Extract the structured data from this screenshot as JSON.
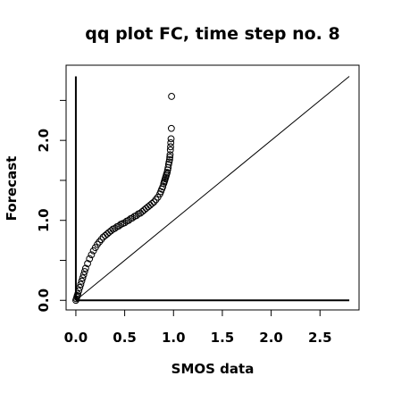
{
  "chart_data": {
    "type": "scatter",
    "title": "qq plot FC, time step no. 8",
    "xlabel": "SMOS data",
    "ylabel": "Forecast",
    "xlim": [
      -0.1,
      2.9
    ],
    "ylim": [
      -0.12,
      2.94
    ],
    "x_ticks": [
      0.0,
      0.5,
      1.0,
      1.5,
      2.0,
      2.5
    ],
    "x_tick_labels": [
      "0.0",
      "0.5",
      "1.0",
      "1.5",
      "2.0",
      "2.5"
    ],
    "y_ticks": [
      0.0,
      0.5,
      1.0,
      1.5,
      2.0,
      2.5
    ],
    "y_tick_labels": [
      "0.0",
      "",
      "1.0",
      "",
      "2.0",
      ""
    ],
    "grid": false,
    "reference_line": {
      "from": [
        0,
        0
      ],
      "to": [
        2.8,
        2.8
      ]
    },
    "reference_axes": {
      "vertical_x": 0.0,
      "vertical_to_y": 2.8,
      "horizontal_y": 0.0,
      "horizontal_to_x": 2.8
    },
    "quantiles": {
      "x": [
        0.0,
        0.005,
        0.01,
        0.015,
        0.02,
        0.03,
        0.04,
        0.05,
        0.06,
        0.07,
        0.08,
        0.09,
        0.1,
        0.12,
        0.14,
        0.16,
        0.18,
        0.2,
        0.22,
        0.24,
        0.26,
        0.28,
        0.3,
        0.32,
        0.34,
        0.36,
        0.38,
        0.4,
        0.42,
        0.44,
        0.46,
        0.48,
        0.5,
        0.52,
        0.54,
        0.56,
        0.58,
        0.6,
        0.62,
        0.64,
        0.66,
        0.68,
        0.7,
        0.72,
        0.74,
        0.76,
        0.78,
        0.8,
        0.82,
        0.84,
        0.86,
        0.87,
        0.88,
        0.89,
        0.9,
        0.905,
        0.91,
        0.915,
        0.92,
        0.925,
        0.93,
        0.935,
        0.94,
        0.945,
        0.95,
        0.955,
        0.96,
        0.962,
        0.965,
        0.968,
        0.97,
        0.972,
        0.975,
        0.978,
        0.98
      ],
      "y": [
        0.0,
        0.02,
        0.04,
        0.06,
        0.08,
        0.12,
        0.16,
        0.2,
        0.24,
        0.28,
        0.32,
        0.36,
        0.4,
        0.46,
        0.52,
        0.57,
        0.62,
        0.66,
        0.7,
        0.73,
        0.76,
        0.79,
        0.81,
        0.83,
        0.85,
        0.87,
        0.89,
        0.9,
        0.92,
        0.93,
        0.95,
        0.96,
        0.97,
        0.99,
        1.0,
        1.02,
        1.03,
        1.05,
        1.06,
        1.08,
        1.09,
        1.11,
        1.13,
        1.15,
        1.17,
        1.19,
        1.21,
        1.23,
        1.26,
        1.29,
        1.33,
        1.36,
        1.39,
        1.42,
        1.46,
        1.48,
        1.5,
        1.52,
        1.54,
        1.56,
        1.58,
        1.6,
        1.63,
        1.66,
        1.7,
        1.73,
        1.76,
        1.79,
        1.82,
        1.88,
        1.92,
        1.97,
        2.02,
        2.15,
        2.55
      ]
    },
    "marker": "open-circle",
    "colors": {
      "points": "#000000",
      "lines": "#000000",
      "background": "#ffffff"
    }
  }
}
